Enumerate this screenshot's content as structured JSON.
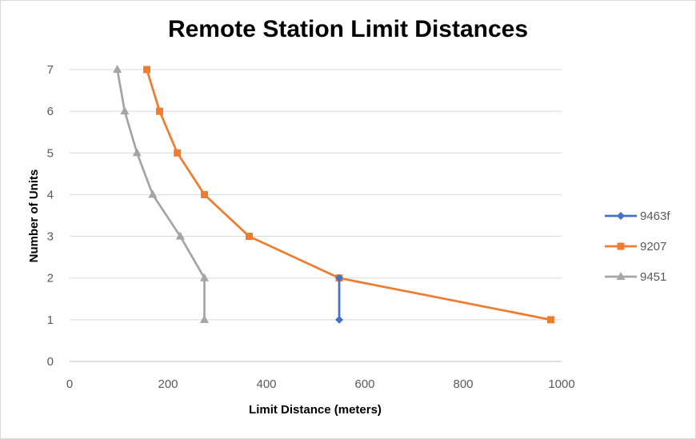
{
  "chart_data": {
    "type": "scatter",
    "title": "Remote Station Limit Distances",
    "xlabel": "Limit Distance (meters)",
    "ylabel": "Number of Units",
    "xlim": [
      0,
      1000
    ],
    "ylim": [
      0,
      7
    ],
    "xticks": [
      0,
      200,
      400,
      600,
      800,
      1000
    ],
    "yticks": [
      0,
      1,
      2,
      3,
      4,
      5,
      6,
      7
    ],
    "grid": "horizontal",
    "legend": "right",
    "series": [
      {
        "name": "9463f",
        "color": "#4472c4",
        "marker": "diamond",
        "points": [
          {
            "x": 548,
            "y": 1
          },
          {
            "x": 548,
            "y": 2
          }
        ]
      },
      {
        "name": "9207",
        "color": "#ed7d31",
        "marker": "square",
        "points": [
          {
            "x": 978,
            "y": 1
          },
          {
            "x": 548,
            "y": 2
          },
          {
            "x": 365,
            "y": 3
          },
          {
            "x": 274,
            "y": 4
          },
          {
            "x": 219,
            "y": 5
          },
          {
            "x": 183,
            "y": 6
          },
          {
            "x": 157,
            "y": 7
          }
        ]
      },
      {
        "name": "9451",
        "color": "#a5a5a5",
        "marker": "triangle",
        "points": [
          {
            "x": 274,
            "y": 1
          },
          {
            "x": 274,
            "y": 2
          },
          {
            "x": 225,
            "y": 3
          },
          {
            "x": 169,
            "y": 4
          },
          {
            "x": 137,
            "y": 5
          },
          {
            "x": 112,
            "y": 6
          },
          {
            "x": 97,
            "y": 7
          }
        ]
      }
    ]
  }
}
